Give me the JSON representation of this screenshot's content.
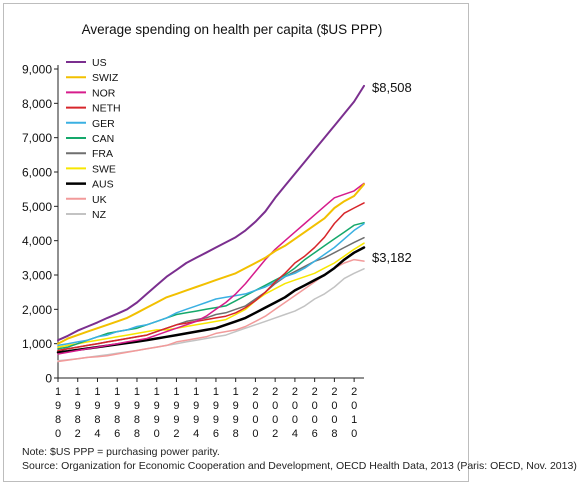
{
  "chart_data": {
    "type": "line",
    "title": "Average spending on health per capita ($US PPP)",
    "xlabel": "",
    "ylabel": "",
    "x": [
      1980,
      1981,
      1982,
      1983,
      1984,
      1985,
      1986,
      1987,
      1988,
      1989,
      1990,
      1991,
      1992,
      1993,
      1994,
      1995,
      1996,
      1997,
      1998,
      1999,
      2000,
      2001,
      2002,
      2003,
      2004,
      2005,
      2006,
      2007,
      2008,
      2009,
      2010,
      2011
    ],
    "xticks": [
      "1980",
      "1982",
      "1984",
      "1986",
      "1988",
      "1990",
      "1992",
      "1994",
      "1996",
      "1998",
      "2000",
      "2002",
      "2004",
      "2006",
      "2008",
      "2010"
    ],
    "yticks": [
      "0",
      "1,000",
      "2,000",
      "3,000",
      "4,000",
      "5,000",
      "6,000",
      "7,000",
      "8,000",
      "9,000"
    ],
    "ylim": [
      0,
      9000
    ],
    "xlim": [
      1980,
      2011
    ],
    "grid": false,
    "legend_position": "top-left",
    "series": [
      {
        "name": "US",
        "color": "#7b2f8f",
        "width": 2,
        "values": [
          1100,
          1230,
          1380,
          1500,
          1620,
          1750,
          1870,
          2000,
          2200,
          2450,
          2700,
          2950,
          3150,
          3350,
          3500,
          3650,
          3800,
          3950,
          4100,
          4300,
          4550,
          4850,
          5250,
          5600,
          5950,
          6300,
          6650,
          7000,
          7350,
          7700,
          8050,
          8508
        ]
      },
      {
        "name": "SWIZ",
        "color": "#f2c000",
        "width": 2,
        "values": [
          1000,
          1150,
          1250,
          1350,
          1450,
          1550,
          1650,
          1750,
          1900,
          2050,
          2200,
          2350,
          2450,
          2550,
          2650,
          2750,
          2850,
          2950,
          3050,
          3200,
          3350,
          3500,
          3700,
          3850,
          4050,
          4250,
          4450,
          4650,
          4950,
          5150,
          5300,
          5643
        ]
      },
      {
        "name": "NOR",
        "color": "#d61c8c",
        "width": 1.5,
        "values": [
          700,
          750,
          800,
          850,
          900,
          950,
          1000,
          1050,
          1100,
          1150,
          1250,
          1350,
          1450,
          1550,
          1650,
          1800,
          2000,
          2200,
          2450,
          2750,
          3100,
          3450,
          3750,
          4000,
          4250,
          4500,
          4750,
          5000,
          5250,
          5350,
          5450,
          5669
        ]
      },
      {
        "name": "NETH",
        "color": "#d7262b",
        "width": 1.5,
        "values": [
          800,
          850,
          900,
          950,
          1000,
          1050,
          1100,
          1150,
          1200,
          1250,
          1350,
          1450,
          1550,
          1600,
          1650,
          1700,
          1750,
          1800,
          1900,
          2050,
          2250,
          2500,
          2800,
          3050,
          3350,
          3550,
          3800,
          4100,
          4500,
          4800,
          4950,
          5099
        ]
      },
      {
        "name": "GER",
        "color": "#3ab0e2",
        "width": 1.5,
        "values": [
          950,
          1000,
          1050,
          1100,
          1200,
          1250,
          1350,
          1400,
          1500,
          1550,
          1650,
          1750,
          1900,
          2000,
          2100,
          2200,
          2300,
          2350,
          2400,
          2450,
          2550,
          2650,
          2800,
          2950,
          3050,
          3200,
          3400,
          3600,
          3800,
          4050,
          4300,
          4495
        ]
      },
      {
        "name": "CAN",
        "color": "#15a86b",
        "width": 1.5,
        "values": [
          850,
          900,
          1000,
          1100,
          1200,
          1300,
          1350,
          1400,
          1450,
          1550,
          1650,
          1750,
          1850,
          1900,
          1950,
          2000,
          2050,
          2100,
          2250,
          2400,
          2550,
          2700,
          2850,
          3000,
          3200,
          3450,
          3650,
          3850,
          4050,
          4250,
          4450,
          4522
        ]
      },
      {
        "name": "FRA",
        "color": "#6f6f6f",
        "width": 1.5,
        "values": [
          800,
          850,
          900,
          950,
          1000,
          1050,
          1100,
          1150,
          1200,
          1250,
          1350,
          1450,
          1550,
          1650,
          1700,
          1750,
          1850,
          1900,
          2000,
          2100,
          2300,
          2500,
          2750,
          2950,
          3100,
          3250,
          3400,
          3500,
          3650,
          3800,
          3950,
          4085
        ]
      },
      {
        "name": "SWE",
        "color": "#f7e600",
        "width": 1.5,
        "values": [
          900,
          950,
          1000,
          1050,
          1100,
          1150,
          1200,
          1250,
          1300,
          1350,
          1400,
          1400,
          1450,
          1500,
          1550,
          1600,
          1650,
          1700,
          1850,
          2000,
          2250,
          2450,
          2600,
          2750,
          2850,
          2950,
          3050,
          3200,
          3350,
          3550,
          3750,
          3925
        ]
      },
      {
        "name": "AUS",
        "color": "#000000",
        "width": 2.5,
        "values": [
          750,
          780,
          820,
          860,
          900,
          940,
          980,
          1020,
          1060,
          1100,
          1150,
          1200,
          1250,
          1300,
          1350,
          1400,
          1450,
          1550,
          1650,
          1750,
          1900,
          2050,
          2200,
          2350,
          2550,
          2700,
          2850,
          3000,
          3200,
          3450,
          3650,
          3800
        ]
      },
      {
        "name": "UK",
        "color": "#f29a9a",
        "width": 1.5,
        "values": [
          480,
          520,
          560,
          600,
          620,
          650,
          700,
          750,
          800,
          850,
          900,
          950,
          1050,
          1100,
          1150,
          1200,
          1300,
          1350,
          1400,
          1500,
          1650,
          1800,
          2000,
          2200,
          2400,
          2600,
          2800,
          3000,
          3200,
          3350,
          3450,
          3405
        ]
      },
      {
        "name": "NZ",
        "color": "#c3c3c3",
        "width": 1.5,
        "values": [
          500,
          530,
          560,
          600,
          640,
          680,
          720,
          760,
          800,
          850,
          900,
          950,
          1000,
          1050,
          1100,
          1150,
          1200,
          1250,
          1350,
          1450,
          1550,
          1650,
          1750,
          1850,
          1950,
          2100,
          2300,
          2450,
          2650,
          2900,
          3050,
          3182
        ]
      }
    ],
    "annotations": [
      {
        "text": "$8,508",
        "series": "US",
        "x": 2011,
        "y": 8508
      },
      {
        "text": "$3,182",
        "series": "NZ",
        "x": 2011,
        "y": 3182
      }
    ],
    "notes": [
      "Note: $US PPP = purchasing power parity.",
      "Source: Organization for Economic Cooperation and Development, OECD Health Data, 2013 (Paris: OECD, Nov. 2013)"
    ]
  }
}
